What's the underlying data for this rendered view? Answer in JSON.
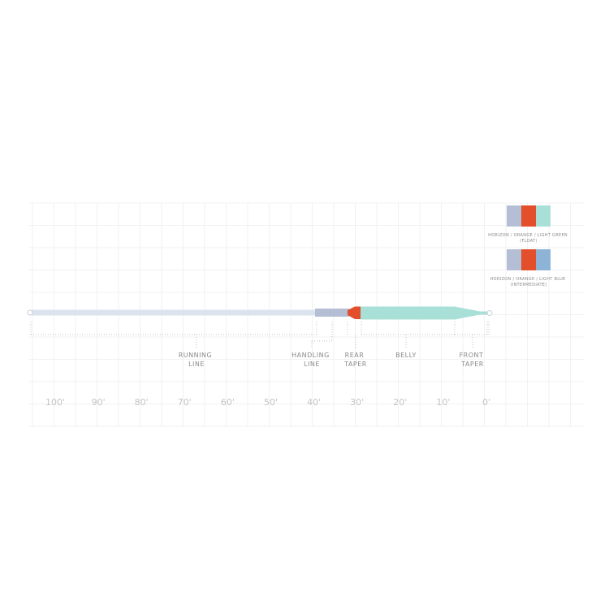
{
  "colors": {
    "horizon": "#b4bfd6",
    "orange": "#e24f2a",
    "light_green": "#a8e0d8",
    "light_blue": "#8db3d6",
    "running_line": "#dbe3ef",
    "grid": "#f1f1f1",
    "dotted": "#c2c2c2"
  },
  "segments": [
    {
      "id": "running",
      "line1": "RUNNING",
      "line2": "LINE"
    },
    {
      "id": "handling",
      "line1": "HANDLING",
      "line2": "LINE"
    },
    {
      "id": "rear",
      "line1": "REAR",
      "line2": "TAPER"
    },
    {
      "id": "belly",
      "line1": "BELLY",
      "line2": ""
    },
    {
      "id": "front",
      "line1": "FRONT",
      "line2": "TAPER"
    }
  ],
  "scale": {
    "ticks": [
      "100'",
      "90'",
      "80'",
      "70'",
      "60'",
      "50'",
      "40'",
      "30'",
      "20'",
      "10'",
      "0'"
    ]
  },
  "legend": [
    {
      "label1": "HORIZON / ORANGE / LIGHT GREEN",
      "label2": "(FLOAT)",
      "swatches": [
        "horizon",
        "orange",
        "light_green"
      ]
    },
    {
      "label1": "HORIZON / ORANGE / LIGHT BLUE",
      "label2": "(INTERMEDIATE)",
      "swatches": [
        "horizon",
        "orange",
        "light_blue"
      ]
    }
  ]
}
